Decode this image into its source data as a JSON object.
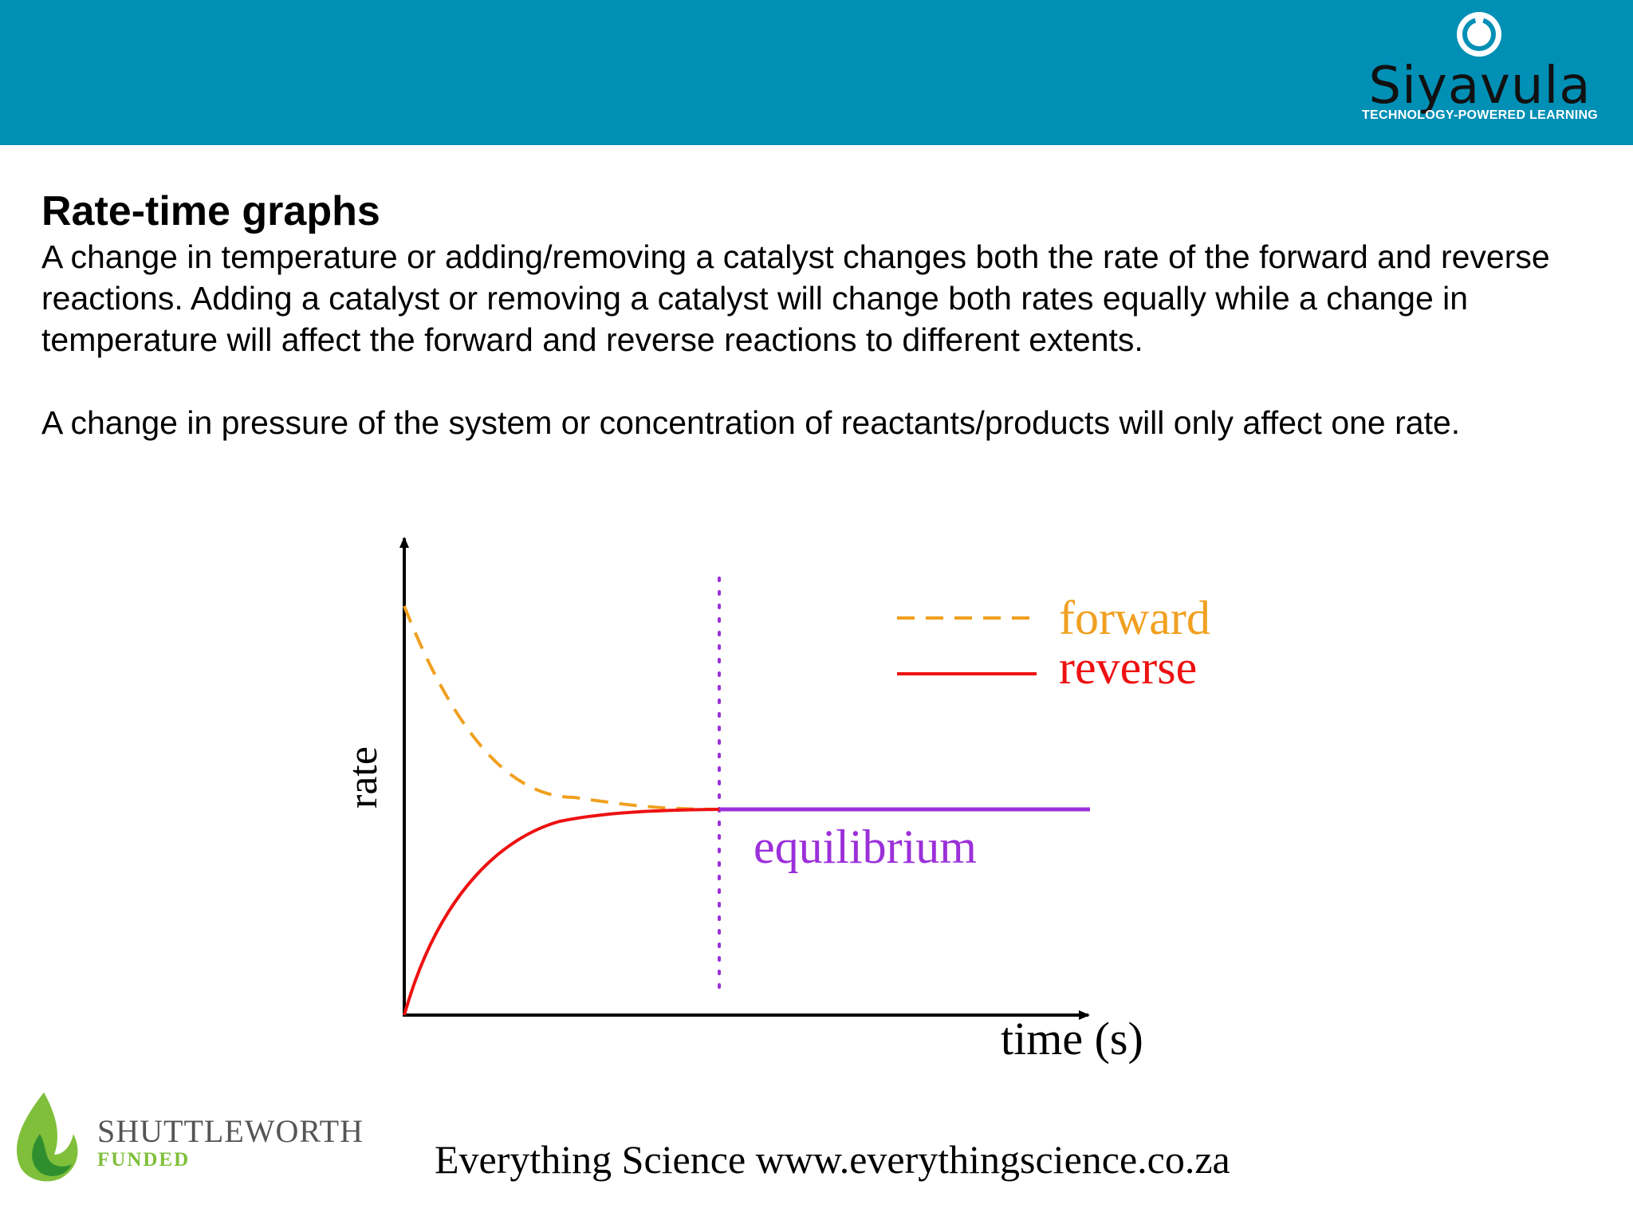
{
  "header": {
    "brand_name": "Siyavula",
    "brand_tagline": "TECHNOLOGY-POWERED LEARNING",
    "bar_color": "#008fb5"
  },
  "main": {
    "title": "Rate-time graphs",
    "paragraphs": [
      "A change in temperature or adding/removing a catalyst changes both the rate of the forward and reverse reactions. Adding a catalyst or removing a catalyst will change both rates equally while a change in temperature will affect the forward and reverse reactions to different extents.",
      "A change in pressure of the system or concentration of reactants/products will only affect one rate."
    ]
  },
  "diagram": {
    "y_axis_label": "rate",
    "x_axis_label": "time (s)",
    "legend": {
      "forward": "forward",
      "reverse": "reverse"
    },
    "equilibrium_label": "equilibrium",
    "colors": {
      "forward": "#f0a020",
      "reverse": "#ee1111",
      "equilibrium": "#9b30d9",
      "axes": "#000000"
    }
  },
  "footer": {
    "sponsor_name": "SHUTTLEWORTH",
    "sponsor_sub": "FUNDED",
    "site_text": "Everything Science www.everythingscience.co.za"
  }
}
